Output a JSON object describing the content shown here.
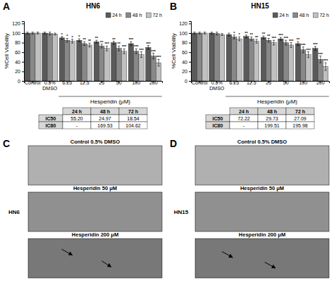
{
  "chart_data": [
    {
      "type": "bar",
      "panel_label": "A",
      "title": "HN6",
      "x_label": "Hesperidin (μM)",
      "y_label": "%Cell Viability",
      "categories": [
        "Control",
        "0.5%\nDMSO",
        "6.25",
        "12.5",
        "25",
        "50",
        "100",
        "200"
      ],
      "series": [
        {
          "name": "24 h",
          "color": "#5a5a5a",
          "values": [
            100,
            100,
            90,
            85,
            82,
            80,
            78,
            70
          ],
          "errors": [
            2,
            2,
            3,
            3,
            3,
            3,
            4,
            4
          ],
          "significance": [
            null,
            null,
            "*",
            "*",
            "**",
            "**",
            "***",
            "***"
          ]
        },
        {
          "name": "48 h",
          "color": "#888888",
          "values": [
            100,
            99,
            85,
            78,
            73,
            68,
            62,
            52
          ],
          "errors": [
            2,
            3,
            4,
            4,
            4,
            5,
            5,
            6
          ],
          "significance": [
            null,
            null,
            "*",
            "**",
            "**",
            "**",
            "***",
            "***"
          ]
        },
        {
          "name": "72 h",
          "color": "#c0c0c0",
          "values": [
            100,
            98,
            83,
            75,
            68,
            62,
            55,
            38
          ],
          "errors": [
            2,
            2,
            4,
            4,
            5,
            5,
            6,
            7
          ],
          "significance": [
            null,
            null,
            "*",
            "**",
            "***",
            "***",
            "***",
            "***"
          ]
        }
      ],
      "ylim": [
        0,
        125
      ],
      "yticks": [
        0,
        20,
        40,
        60,
        80,
        100,
        120
      ],
      "grid": false,
      "legend": "top-right",
      "table": {
        "columns": [
          "24 h",
          "48 h",
          "72 h"
        ],
        "rows": [
          {
            "label": "IC50",
            "cells": [
              "55.20",
              "24.97",
              "18.54"
            ]
          },
          {
            "label": "IC80",
            "cells": [
              "-",
              "169.53",
              "104.62"
            ]
          }
        ]
      }
    },
    {
      "type": "bar",
      "panel_label": "B",
      "title": "HN15",
      "x_label": "Hesperidin (μM)",
      "y_label": "%Cell Viability",
      "categories": [
        "Control",
        "0.5%\nDMSO",
        "6.25",
        "12.5",
        "25",
        "50",
        "100",
        "200"
      ],
      "series": [
        {
          "name": "24 h",
          "color": "#5a5a5a",
          "values": [
            100,
            100,
            97,
            93,
            91,
            88,
            78,
            68
          ],
          "errors": [
            2,
            2,
            3,
            3,
            3,
            3,
            4,
            4
          ],
          "significance": [
            null,
            null,
            null,
            "**",
            "**",
            "***",
            "**",
            "***"
          ]
        },
        {
          "name": "48 h",
          "color": "#888888",
          "values": [
            100,
            99,
            92,
            88,
            85,
            80,
            65,
            45
          ],
          "errors": [
            2,
            3,
            4,
            4,
            4,
            5,
            6,
            7
          ],
          "significance": [
            null,
            null,
            "*",
            "**",
            "**",
            "***",
            "***",
            "***"
          ]
        },
        {
          "name": "72 h",
          "color": "#c0c0c0",
          "values": [
            100,
            97,
            88,
            83,
            80,
            75,
            55,
            30
          ],
          "errors": [
            2,
            2,
            4,
            4,
            5,
            5,
            6,
            8
          ],
          "significance": [
            null,
            null,
            "*",
            "**",
            "***",
            "***",
            "***",
            "***"
          ]
        }
      ],
      "ylim": [
        0,
        125
      ],
      "yticks": [
        0,
        20,
        40,
        60,
        80,
        100,
        120
      ],
      "grid": false,
      "legend": "top-right",
      "table": {
        "columns": [
          "24 h",
          "48 h",
          "72 h"
        ],
        "rows": [
          {
            "label": "IC50",
            "cells": [
              "72.22",
              "29.73",
              "27.09"
            ]
          },
          {
            "label": "IC80",
            "cells": [
              "-",
              "199.51",
              "195.98"
            ]
          }
        ]
      }
    },
    {
      "type": "image",
      "panel_label": "C",
      "row_label": "HN6",
      "panels": [
        {
          "title": "Control 0.5% DMSO",
          "color": "#b0b0b0"
        },
        {
          "title": "Hesperidin 50 μM",
          "color": "#909090"
        },
        {
          "title": "Hesperidin 200 μM",
          "color": "#787878"
        }
      ]
    },
    {
      "type": "image",
      "panel_label": "D",
      "row_label": "HN15",
      "panels": [
        {
          "title": "Control 0.5% DMSO",
          "color": "#b0b0b0"
        },
        {
          "title": "Hesperidin 50 μM",
          "color": "#909090"
        },
        {
          "title": "Hesperidin 200 μM",
          "color": "#787878"
        }
      ]
    }
  ]
}
